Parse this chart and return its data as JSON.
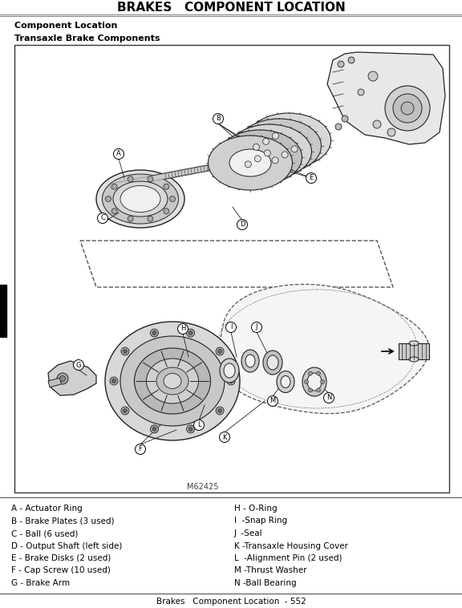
{
  "title": "BRAKES   COMPONENT LOCATION",
  "section_header": "Component Location",
  "sub_header": "Transaxle Brake Components",
  "figure_id": "M62425",
  "page_footer": "Brakes   Component Location  - 552",
  "legend_left": [
    "A - Actuator Ring",
    "B - Brake Plates (3 used)",
    "C - Ball (6 used)",
    "D - Output Shaft (left side)",
    "E - Brake Disks (2 used)",
    "F - Cap Screw (10 used)",
    "G - Brake Arm"
  ],
  "legend_right": [
    "H - O-Ring",
    "I  -Snap Ring",
    "J  -Seal",
    "K -Transaxle Housing Cover",
    "L  -Alignment Pin (2 used)",
    "M -Thrust Washer",
    "N -Ball Bearing"
  ],
  "page_bg": "#ffffff",
  "diagram_bg": "#ffffff",
  "text_color": "#000000",
  "line_color": "#222222",
  "title_lines_color": "#555555"
}
